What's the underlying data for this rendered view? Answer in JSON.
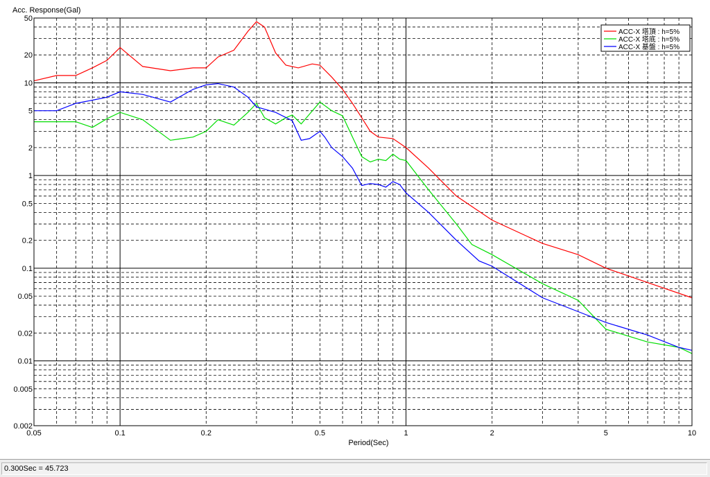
{
  "status": {
    "readout": "0.300Sec = 45.723"
  },
  "colors": {
    "axis": "#000000",
    "grid": "#000000",
    "background": "#ffffff"
  },
  "chart_data": {
    "type": "line",
    "title": "",
    "ylabel": "Acc. Response(Gal)",
    "xlabel": "Period(Sec)",
    "xscale": "log",
    "yscale": "log",
    "xlim": [
      0.05,
      10
    ],
    "ylim": [
      0.002,
      50
    ],
    "grid": true,
    "legend_position": "top-right",
    "x_ticks": [
      {
        "v": 0.05,
        "label": "0.05"
      },
      {
        "v": 0.1,
        "label": "0.1"
      },
      {
        "v": 0.2,
        "label": "0.2"
      },
      {
        "v": 0.5,
        "label": "0.5"
      },
      {
        "v": 1,
        "label": "1"
      },
      {
        "v": 2,
        "label": "2"
      },
      {
        "v": 5,
        "label": "5"
      },
      {
        "v": 10,
        "label": "10"
      }
    ],
    "y_ticks": [
      {
        "v": 50,
        "label": "50"
      },
      {
        "v": 20,
        "label": "20"
      },
      {
        "v": 10,
        "label": "10"
      },
      {
        "v": 5,
        "label": "5"
      },
      {
        "v": 2,
        "label": "2"
      },
      {
        "v": 1,
        "label": "1"
      },
      {
        "v": 0.5,
        "label": "0.5"
      },
      {
        "v": 0.2,
        "label": "0.2"
      },
      {
        "v": 0.1,
        "label": "0.1"
      },
      {
        "v": 0.05,
        "label": "0.05"
      },
      {
        "v": 0.02,
        "label": "0.02"
      },
      {
        "v": 0.01,
        "label": "0.01"
      },
      {
        "v": 0.005,
        "label": "0.005"
      },
      {
        "v": 0.002,
        "label": "0.002"
      }
    ],
    "series": [
      {
        "name": "ACC-X 塔頂 : h=5%",
        "color": "#ff0000",
        "points": [
          [
            0.05,
            10.5
          ],
          [
            0.06,
            12
          ],
          [
            0.07,
            12
          ],
          [
            0.08,
            14.5
          ],
          [
            0.09,
            17.5
          ],
          [
            0.1,
            24
          ],
          [
            0.12,
            15
          ],
          [
            0.15,
            13.5
          ],
          [
            0.18,
            14.5
          ],
          [
            0.2,
            14.5
          ],
          [
            0.22,
            19
          ],
          [
            0.25,
            22.5
          ],
          [
            0.28,
            36
          ],
          [
            0.3,
            45.723
          ],
          [
            0.32,
            40
          ],
          [
            0.35,
            21
          ],
          [
            0.38,
            15.5
          ],
          [
            0.42,
            14.5
          ],
          [
            0.47,
            16
          ],
          [
            0.5,
            15.5
          ],
          [
            0.55,
            11.5
          ],
          [
            0.6,
            8.5
          ],
          [
            0.65,
            6
          ],
          [
            0.7,
            4.2
          ],
          [
            0.75,
            3
          ],
          [
            0.8,
            2.6
          ],
          [
            0.9,
            2.5
          ],
          [
            1.0,
            2.0
          ],
          [
            1.2,
            1.2
          ],
          [
            1.5,
            0.6
          ],
          [
            2.0,
            0.33
          ],
          [
            3.0,
            0.185
          ],
          [
            4.0,
            0.14
          ],
          [
            5.0,
            0.1
          ],
          [
            7.0,
            0.07
          ],
          [
            10,
            0.048
          ]
        ]
      },
      {
        "name": "ACC-X 塔底 : h=5%",
        "color": "#00dd00",
        "points": [
          [
            0.05,
            3.8
          ],
          [
            0.07,
            3.8
          ],
          [
            0.08,
            3.3
          ],
          [
            0.09,
            4.1
          ],
          [
            0.1,
            4.8
          ],
          [
            0.12,
            4
          ],
          [
            0.15,
            2.4
          ],
          [
            0.18,
            2.6
          ],
          [
            0.2,
            3
          ],
          [
            0.22,
            4
          ],
          [
            0.25,
            3.5
          ],
          [
            0.28,
            4.8
          ],
          [
            0.3,
            6
          ],
          [
            0.32,
            4.2
          ],
          [
            0.35,
            3.6
          ],
          [
            0.38,
            4.2
          ],
          [
            0.4,
            4.5
          ],
          [
            0.43,
            3.6
          ],
          [
            0.46,
            4.6
          ],
          [
            0.5,
            6.2
          ],
          [
            0.55,
            5
          ],
          [
            0.6,
            4.4
          ],
          [
            0.65,
            2.6
          ],
          [
            0.7,
            1.6
          ],
          [
            0.75,
            1.4
          ],
          [
            0.8,
            1.5
          ],
          [
            0.85,
            1.45
          ],
          [
            0.9,
            1.7
          ],
          [
            0.95,
            1.5
          ],
          [
            1.0,
            1.45
          ],
          [
            1.2,
            0.7
          ],
          [
            1.5,
            0.3
          ],
          [
            1.7,
            0.18
          ],
          [
            2.0,
            0.14
          ],
          [
            3.0,
            0.068
          ],
          [
            4.0,
            0.045
          ],
          [
            5.0,
            0.022
          ],
          [
            7.0,
            0.016
          ],
          [
            9.0,
            0.014
          ],
          [
            10,
            0.012
          ]
        ]
      },
      {
        "name": "ACC-X 基盤 : h=5%",
        "color": "#0000ff",
        "points": [
          [
            0.05,
            5
          ],
          [
            0.06,
            5
          ],
          [
            0.07,
            6
          ],
          [
            0.08,
            6.5
          ],
          [
            0.09,
            7
          ],
          [
            0.1,
            8
          ],
          [
            0.12,
            7.5
          ],
          [
            0.15,
            6.2
          ],
          [
            0.18,
            8.5
          ],
          [
            0.2,
            9.5
          ],
          [
            0.22,
            9.8
          ],
          [
            0.25,
            9
          ],
          [
            0.28,
            7
          ],
          [
            0.3,
            5.5
          ],
          [
            0.35,
            4.8
          ],
          [
            0.4,
            3.9
          ],
          [
            0.43,
            2.4
          ],
          [
            0.46,
            2.5
          ],
          [
            0.5,
            3
          ],
          [
            0.52,
            2.6
          ],
          [
            0.55,
            2.0
          ],
          [
            0.6,
            1.6
          ],
          [
            0.65,
            1.2
          ],
          [
            0.7,
            0.78
          ],
          [
            0.75,
            0.82
          ],
          [
            0.8,
            0.8
          ],
          [
            0.85,
            0.75
          ],
          [
            0.9,
            0.86
          ],
          [
            0.95,
            0.8
          ],
          [
            1.0,
            0.65
          ],
          [
            1.2,
            0.4
          ],
          [
            1.5,
            0.2
          ],
          [
            1.8,
            0.12
          ],
          [
            2.0,
            0.105
          ],
          [
            3.0,
            0.048
          ],
          [
            4.0,
            0.034
          ],
          [
            5.0,
            0.026
          ],
          [
            7.0,
            0.019
          ],
          [
            9.0,
            0.014
          ],
          [
            10,
            0.013
          ]
        ]
      }
    ]
  }
}
